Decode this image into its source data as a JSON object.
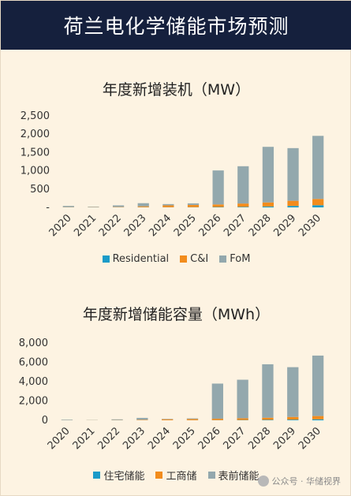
{
  "header": {
    "title": "荷兰电化学储能市场预测"
  },
  "watermark": {
    "text": "公众号 · 华储视界"
  },
  "colors": {
    "residential": "#1a9bc8",
    "ci": "#f28c1c",
    "fom": "#93a8ad",
    "banner": "#15203d",
    "background": "#fdf3e2"
  },
  "chart_data": [
    {
      "type": "bar",
      "stacked": true,
      "title": "年度新增装机（MW）",
      "categories": [
        "2020",
        "2021",
        "2022",
        "2023",
        "2024",
        "2025",
        "2026",
        "2027",
        "2028",
        "2029",
        "2030"
      ],
      "ylim": [
        0,
        2500
      ],
      "yticks": [
        0,
        500,
        1000,
        1500,
        2000,
        2500
      ],
      "ytick_labels": [
        "-",
        "500",
        "1,000",
        "1,500",
        "2,000",
        "2,500"
      ],
      "legend_position": "bottom",
      "series": [
        {
          "name": "Residential",
          "color": "#1a9bc8",
          "values": [
            3,
            3,
            4,
            5,
            5,
            6,
            10,
            15,
            25,
            40,
            60
          ]
        },
        {
          "name": "C&I",
          "color": "#f28c1c",
          "values": [
            5,
            5,
            10,
            25,
            50,
            60,
            70,
            90,
            110,
            140,
            170
          ]
        },
        {
          "name": "FoM",
          "color": "#93a8ad",
          "values": [
            32,
            12,
            41,
            85,
            35,
            44,
            930,
            1020,
            1520,
            1440,
            1725
          ]
        }
      ]
    },
    {
      "type": "bar",
      "stacked": true,
      "title": "年度新增储能容量（MWh）",
      "categories": [
        "2020",
        "2021",
        "2022",
        "2023",
        "2024",
        "2025",
        "2026",
        "2027",
        "2028",
        "2029",
        "2030"
      ],
      "ylim": [
        0,
        8000
      ],
      "yticks": [
        0,
        2000,
        4000,
        6000,
        8000
      ],
      "ytick_labels": [
        "0",
        "2,000",
        "4,000",
        "6,000",
        "8,000"
      ],
      "legend_position": "bottom",
      "series": [
        {
          "name": "住宅储能",
          "color": "#1a9bc8",
          "values": [
            5,
            5,
            8,
            10,
            10,
            12,
            20,
            30,
            50,
            70,
            100
          ]
        },
        {
          "name": "工商储",
          "color": "#f28c1c",
          "values": [
            10,
            10,
            20,
            50,
            100,
            120,
            140,
            180,
            220,
            280,
            340
          ]
        },
        {
          "name": "表前储能",
          "color": "#93a8ad",
          "values": [
            55,
            15,
            72,
            190,
            40,
            68,
            3640,
            3990,
            5530,
            5150,
            6260
          ]
        }
      ]
    }
  ]
}
